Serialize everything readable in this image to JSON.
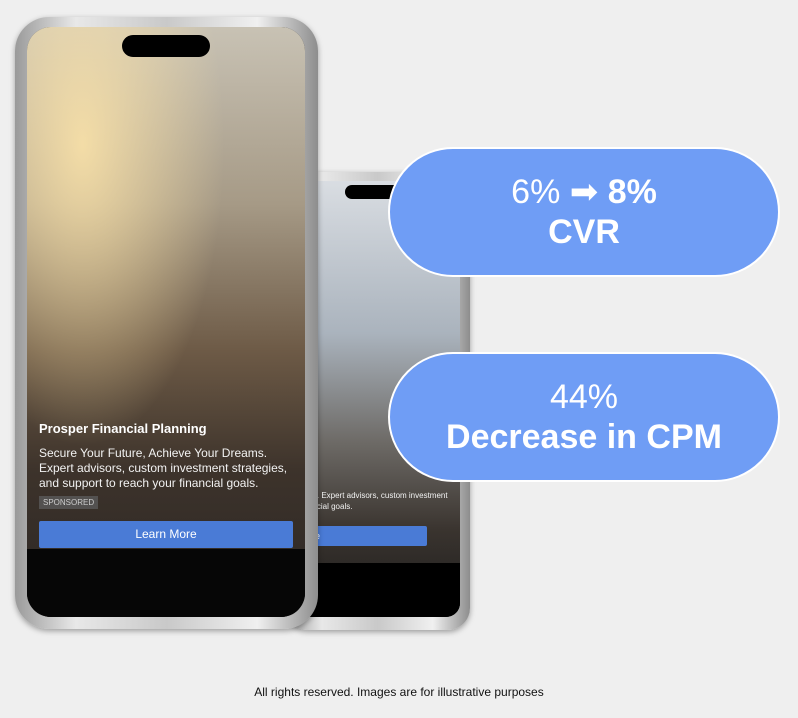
{
  "ad": {
    "title": "Prosper Financial Planning",
    "body": "Secure Your Future, Achieve Your Dreams. Expert advisors, custom investment strategies, and support to reach your financial goals.",
    "sponsored": "SPONSORED",
    "cta": "Learn More"
  },
  "stats": {
    "cvr_value_from": "6%",
    "cvr_arrow": "➡",
    "cvr_value_to": "8%",
    "cvr_label": "CVR",
    "cpm_value": "44%",
    "cpm_label": "Decrease in CPM"
  },
  "colors": {
    "pill": "#6f9df5",
    "cta": "#4a7bd6"
  },
  "footer": "All rights reserved. Images are for illustrative purposes"
}
